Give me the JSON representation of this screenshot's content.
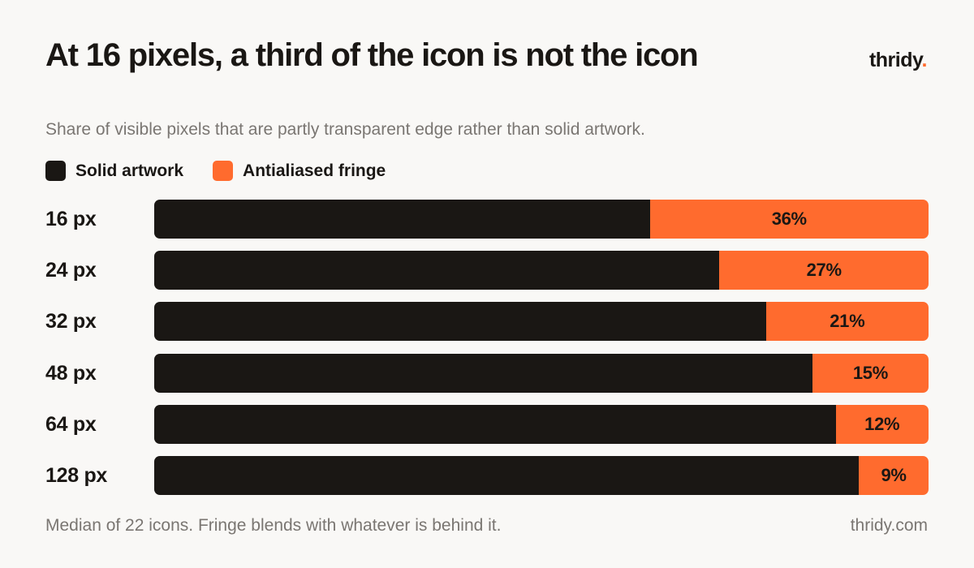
{
  "title": "At 16 pixels, a third of the icon is not the icon",
  "subtitle": "Share of visible pixels that are partly transparent edge rather than solid artwork.",
  "brand": {
    "name": "thridy",
    "dot": "."
  },
  "footnote": "Median of 22 icons. Fringe blends with whatever is behind it.",
  "footer_brand": "thridy.com",
  "colors": {
    "solid": "#1a1714",
    "fringe": "#ff6b2e"
  },
  "chart_data": {
    "type": "bar",
    "orientation": "horizontal",
    "stacked": true,
    "normalized_percent": true,
    "categories": [
      "16 px",
      "24 px",
      "32 px",
      "48 px",
      "64 px",
      "128 px"
    ],
    "series": [
      {
        "name": "Solid artwork",
        "values": [
          64,
          73,
          79,
          85,
          88,
          91
        ]
      },
      {
        "name": "Antialiased fringe",
        "values": [
          36,
          27,
          21,
          15,
          12,
          9
        ]
      }
    ],
    "data_labels": [
      "36%",
      "27%",
      "21%",
      "15%",
      "12%",
      "9%"
    ],
    "legend_position": "top-left",
    "grid": false
  }
}
